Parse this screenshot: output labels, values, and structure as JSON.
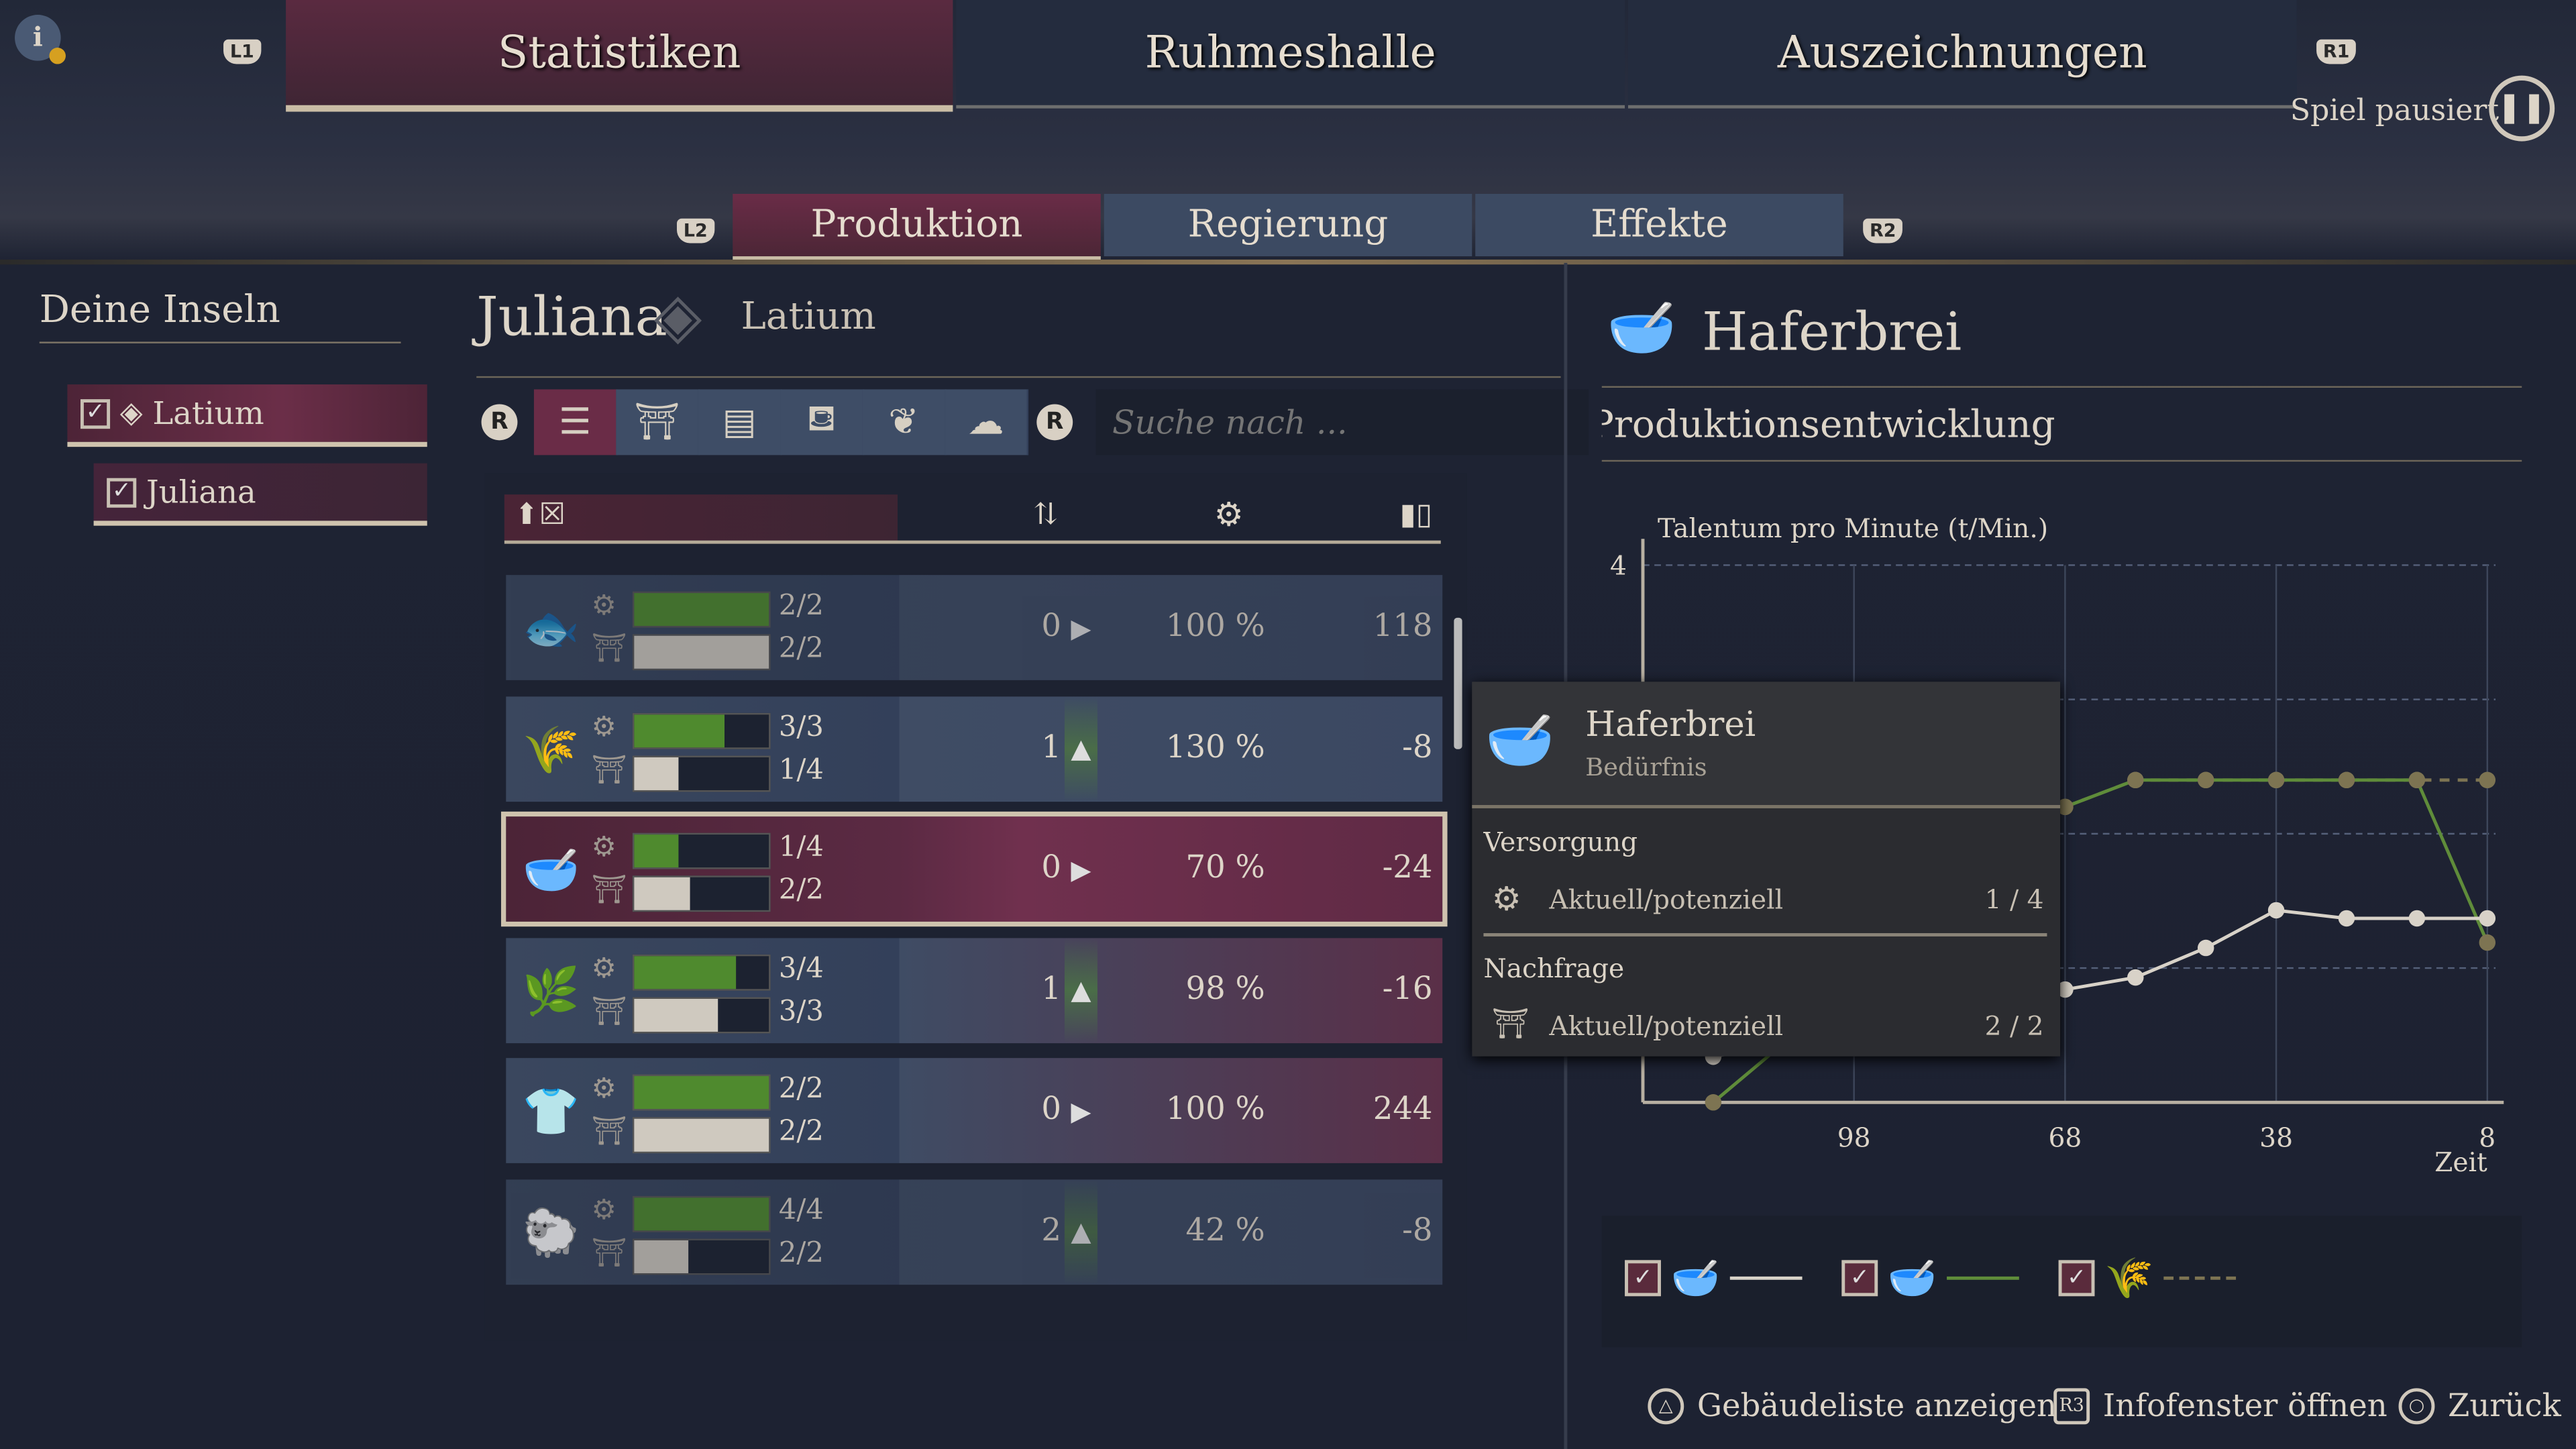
{
  "top_tabs": [
    {
      "label": "Statistiken",
      "active": true
    },
    {
      "label": "Ruhmeshalle"
    },
    {
      "label": "Auszeichnungen"
    }
  ],
  "buttons": {
    "l1": "L1",
    "r1": "R1",
    "l2": "L2",
    "r2": "R2",
    "r_left": "R",
    "r_right": "R"
  },
  "status": {
    "paused": "Spiel pausiert"
  },
  "sub_tabs": [
    {
      "label": "Produktion",
      "active": true
    },
    {
      "label": "Regierung"
    },
    {
      "label": "Effekte"
    }
  ],
  "sidebar": {
    "title": "Deine Inseln",
    "items": [
      {
        "label": "Latium",
        "checked": true
      },
      {
        "label": "Juliana",
        "checked": true
      }
    ]
  },
  "header": {
    "island": "Juliana",
    "region": "Latium"
  },
  "filters": [
    "list-icon",
    "market-icon",
    "workshop-icon",
    "basket-icon",
    "wheat-icon",
    "wool-icon"
  ],
  "search": {
    "placeholder": "Suche nach ..."
  },
  "rows": [
    {
      "good": "fish",
      "icon": "🐟",
      "supply": "2/2",
      "supply_fill": 1.0,
      "demand": "2/2",
      "demand_fill": 1.0,
      "count": "0",
      "trend": "right",
      "productivity": "100 %",
      "balance": "118",
      "negative": false
    },
    {
      "good": "oats",
      "icon": "🌾",
      "supply": "3/3",
      "supply_fill": 0.67,
      "demand": "1/4",
      "demand_fill": 0.33,
      "count": "1",
      "trend": "up",
      "productivity": "130 %",
      "balance": "-8",
      "negative": false
    },
    {
      "good": "porridge",
      "icon": "🥣",
      "supply": "1/4",
      "supply_fill": 0.33,
      "demand": "2/2",
      "demand_fill": 0.42,
      "count": "0",
      "trend": "right",
      "productivity": "70 %",
      "balance": "-24",
      "negative": true,
      "selected": true
    },
    {
      "good": "hemp",
      "icon": "🌿",
      "supply": "3/4",
      "supply_fill": 0.75,
      "demand": "3/3",
      "demand_fill": 0.62,
      "count": "1",
      "trend": "up",
      "productivity": "98 %",
      "balance": "-16",
      "negative": true
    },
    {
      "good": "tunic",
      "icon": "👕",
      "supply": "2/2",
      "supply_fill": 1.0,
      "demand": "2/2",
      "demand_fill": 1.0,
      "count": "0",
      "trend": "right",
      "productivity": "100 %",
      "balance": "244",
      "negative": true
    },
    {
      "good": "sheep",
      "icon": "🐑",
      "supply": "4/4",
      "supply_fill": 1.0,
      "demand": "2/2",
      "demand_fill": 0.4,
      "count": "2",
      "trend": "up",
      "productivity": "42 %",
      "balance": "-8",
      "negative": false
    }
  ],
  "detail": {
    "title": "Haferbrei",
    "section": "Produktionsentwicklung"
  },
  "tooltip": {
    "title": "Haferbrei",
    "subtitle": "Bedürfnis",
    "supply_heading": "Versorgung",
    "supply_label": "Aktuell/potenziell",
    "supply_value": "1 / 4",
    "demand_heading": "Nachfrage",
    "demand_label": "Aktuell/potenziell",
    "demand_value": "2 / 2"
  },
  "chart_data": {
    "type": "line",
    "ylabel": "Talentum pro Minute (t/Min.)",
    "xlabel": "Zeit",
    "ylim": [
      0,
      4
    ],
    "yticks": [
      "4"
    ],
    "xlim": [
      128,
      8
    ],
    "xticks": [
      "98",
      "68",
      "38",
      "8"
    ],
    "grid": true,
    "series": [
      {
        "key": "demand",
        "color": "#d8d2c8",
        "style": "solid",
        "points": [
          [
            118,
            0.34
          ],
          [
            68,
            0.84
          ],
          [
            58,
            0.93
          ],
          [
            48,
            1.15
          ],
          [
            38,
            1.43
          ],
          [
            28,
            1.37
          ],
          [
            18,
            1.37
          ],
          [
            8,
            1.37
          ]
        ]
      },
      {
        "key": "supply",
        "color": "#5f8c3a",
        "style": "solid",
        "points": [
          [
            118,
            0
          ],
          [
            68,
            2.2
          ],
          [
            58,
            2.4
          ],
          [
            48,
            2.4
          ],
          [
            38,
            2.4
          ],
          [
            28,
            2.4
          ],
          [
            18,
            2.4
          ],
          [
            8,
            1.19
          ]
        ]
      },
      {
        "key": "potential",
        "color": "#7d7452",
        "style": "dashed",
        "points": [
          [
            68,
            2.2
          ],
          [
            58,
            2.4
          ],
          [
            48,
            2.4
          ],
          [
            38,
            2.4
          ],
          [
            28,
            2.4
          ],
          [
            18,
            2.4
          ],
          [
            8,
            2.4
          ]
        ]
      }
    ]
  },
  "legend": [
    {
      "checked": true,
      "color": "#d8d2c8"
    },
    {
      "checked": true,
      "color": "#5f8c3a"
    },
    {
      "checked": true,
      "color": "#7d7452"
    }
  ],
  "footer": [
    {
      "label": "Gebäudeliste anzeigen",
      "symbol": "△"
    },
    {
      "label": "Infofenster öffnen",
      "symbol": "R3"
    },
    {
      "label": "Zurück",
      "symbol": "○"
    }
  ]
}
